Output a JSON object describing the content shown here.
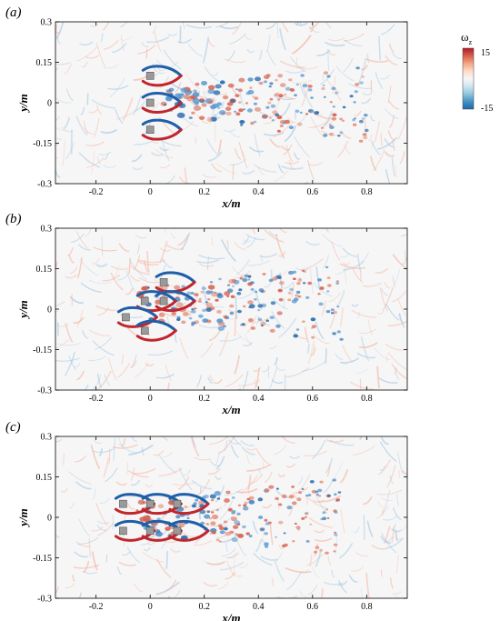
{
  "chart_data": [
    {
      "type": "heatmap",
      "panel_label": "(a)",
      "field": "vorticity contour",
      "xlabel": "x/m",
      "ylabel": "y/m",
      "xlim": [
        -0.35,
        0.95
      ],
      "ylim": [
        -0.3,
        0.3
      ],
      "xticks": [
        -0.2,
        0,
        0.2,
        0.4,
        0.6,
        0.8
      ],
      "yticks": [
        -0.3,
        -0.15,
        0,
        0.15,
        0.3
      ],
      "xtick_labels": [
        "-0.2",
        "0",
        "0.2",
        "0.4",
        "0.6",
        "0.8"
      ],
      "ytick_labels": [
        "-0.3",
        "-0.15",
        "0",
        "0.15",
        "0.3"
      ],
      "bodies": [
        [
          0,
          0.1
        ],
        [
          0,
          0
        ],
        [
          0,
          -0.1
        ]
      ],
      "grid": false
    },
    {
      "type": "heatmap",
      "panel_label": "(b)",
      "field": "vorticity contour",
      "xlabel": "x/m",
      "ylabel": "y/m",
      "xlim": [
        -0.35,
        0.95
      ],
      "ylim": [
        -0.3,
        0.3
      ],
      "xticks": [
        -0.2,
        0,
        0.2,
        0.4,
        0.6,
        0.8
      ],
      "yticks": [
        -0.3,
        -0.15,
        0,
        0.15,
        0.3
      ],
      "xtick_labels": [
        "-0.2",
        "0",
        "0.2",
        "0.4",
        "0.6",
        "0.8"
      ],
      "ytick_labels": [
        "-0.3",
        "-0.15",
        "0",
        "0.15",
        "0.3"
      ],
      "bodies": [
        [
          0.05,
          0.1
        ],
        [
          -0.02,
          0.03
        ],
        [
          0.05,
          0.03
        ],
        [
          -0.09,
          -0.03
        ],
        [
          -0.02,
          -0.08
        ]
      ],
      "grid": false
    },
    {
      "type": "heatmap",
      "panel_label": "(c)",
      "field": "vorticity contour",
      "xlabel": "x/m",
      "ylabel": "y/m",
      "xlim": [
        -0.35,
        0.95
      ],
      "ylim": [
        -0.3,
        0.3
      ],
      "xticks": [
        -0.2,
        0,
        0.2,
        0.4,
        0.6,
        0.8
      ],
      "yticks": [
        -0.3,
        -0.15,
        0,
        0.15,
        0.3
      ],
      "xtick_labels": [
        "-0.2",
        "0",
        "0.2",
        "0.4",
        "0.6",
        "0.8"
      ],
      "ytick_labels": [
        "-0.3",
        "-0.15",
        "0",
        "0.15",
        "0.3"
      ],
      "bodies": [
        [
          -0.1,
          0.05
        ],
        [
          -0.1,
          -0.05
        ],
        [
          0,
          0.05
        ],
        [
          0,
          -0.05
        ],
        [
          0.1,
          0.05
        ],
        [
          0.1,
          -0.05
        ]
      ],
      "grid": false
    }
  ],
  "colorbar": {
    "title": "ω",
    "subscript": "z",
    "max_label": "15",
    "min_label": "-15",
    "range": [
      -15,
      15
    ],
    "colors": [
      "#2166ac",
      "#4393c3",
      "#92c5de",
      "#d1e5f0",
      "#f7f7f7",
      "#fddbc7",
      "#f4a582",
      "#d6604d",
      "#b2182b"
    ]
  }
}
